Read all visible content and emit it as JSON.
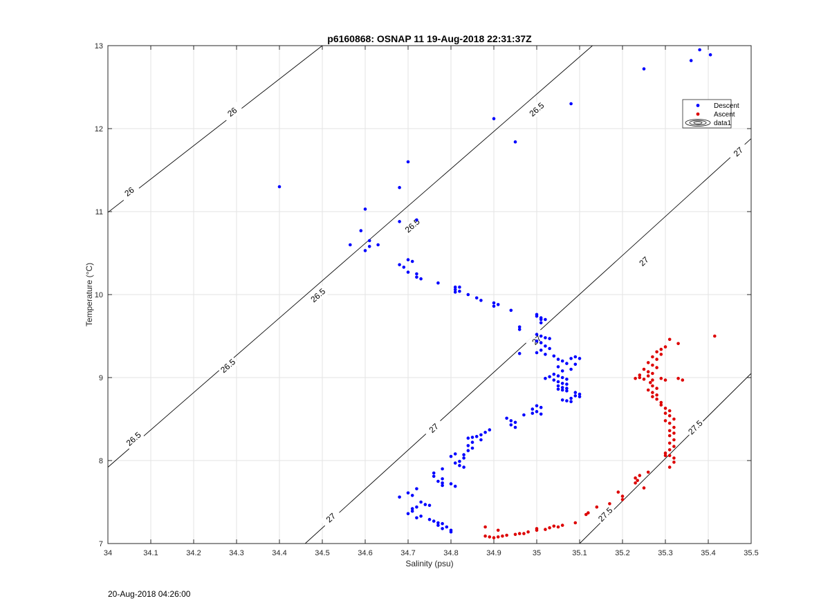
{
  "chart_data": {
    "type": "scatter",
    "title": "p6160868: OSNAP 11 19-Aug-2018 22:31:37Z",
    "xlabel": "Salinity (psu)",
    "ylabel": "Temperature (°C)",
    "xlim": [
      34,
      35.5
    ],
    "ylim": [
      7,
      13
    ],
    "xticks": [
      34,
      34.1,
      34.2,
      34.3,
      34.4,
      34.5,
      34.6,
      34.7,
      34.8,
      34.9,
      35,
      35.1,
      35.2,
      35.3,
      35.4,
      35.5
    ],
    "xtick_labels": [
      "34",
      "34.1",
      "34.2",
      "34.3",
      "34.4",
      "34.5",
      "34.6",
      "34.7",
      "34.8",
      "34.9",
      "35",
      "35.1",
      "35.2",
      "35.3",
      "35.4",
      "35.5"
    ],
    "yticks": [
      7,
      8,
      9,
      10,
      11,
      12,
      13
    ],
    "ytick_labels": [
      "7",
      "8",
      "9",
      "10",
      "11",
      "12",
      "13"
    ],
    "grid": true,
    "legend_position": "top-right",
    "legend": [
      "Descent",
      "Ascent",
      "data1"
    ],
    "contours": [
      {
        "level": "26",
        "line": [
          [
            34,
            10.99
          ],
          [
            34.5,
            13.0
          ]
        ],
        "labels": [
          [
            34.05,
            11.24
          ],
          [
            34.29,
            12.2
          ]
        ]
      },
      {
        "level": "26.5",
        "line": [
          [
            34,
            7.92
          ],
          [
            35.13,
            13.0
          ]
        ],
        "labels": [
          [
            34.06,
            8.26
          ],
          [
            34.28,
            9.14
          ],
          [
            34.49,
            9.99
          ],
          [
            34.71,
            10.83
          ],
          [
            35.0,
            12.23
          ]
        ]
      },
      {
        "level": "27",
        "line": [
          [
            34.46,
            7.0
          ],
          [
            35.5,
            11.88
          ]
        ],
        "labels": [
          [
            34.52,
            7.31
          ],
          [
            34.76,
            8.39
          ],
          [
            35.0,
            9.45
          ],
          [
            35.25,
            10.4
          ],
          [
            35.47,
            11.72
          ]
        ]
      },
      {
        "level": "27.5",
        "line": [
          [
            35.1,
            7.0
          ],
          [
            35.5,
            9.05
          ]
        ],
        "labels": [
          [
            35.16,
            7.35
          ],
          [
            35.37,
            8.4
          ]
        ]
      }
    ],
    "series": [
      {
        "name": "Descent",
        "color": "#0000ff",
        "points": [
          [
            35.38,
            12.95
          ],
          [
            35.405,
            12.89
          ],
          [
            35.36,
            12.82
          ],
          [
            35.25,
            12.72
          ],
          [
            35.08,
            12.3
          ],
          [
            34.9,
            12.12
          ],
          [
            34.95,
            11.84
          ],
          [
            34.7,
            11.6
          ],
          [
            34.4,
            11.3
          ],
          [
            34.68,
            11.29
          ],
          [
            34.6,
            11.03
          ],
          [
            34.72,
            10.9
          ],
          [
            34.68,
            10.88
          ],
          [
            34.59,
            10.77
          ],
          [
            34.61,
            10.65
          ],
          [
            34.63,
            10.6
          ],
          [
            34.565,
            10.6
          ],
          [
            34.6,
            10.53
          ],
          [
            34.61,
            10.58
          ],
          [
            34.7,
            10.42
          ],
          [
            34.71,
            10.4
          ],
          [
            34.68,
            10.36
          ],
          [
            34.69,
            10.33
          ],
          [
            34.7,
            10.27
          ],
          [
            34.72,
            10.25
          ],
          [
            34.72,
            10.21
          ],
          [
            34.73,
            10.19
          ],
          [
            34.77,
            10.14
          ],
          [
            34.81,
            10.09
          ],
          [
            34.82,
            10.09
          ],
          [
            34.81,
            10.06
          ],
          [
            34.82,
            10.04
          ],
          [
            34.81,
            10.03
          ],
          [
            34.84,
            10.0
          ],
          [
            34.86,
            9.96
          ],
          [
            34.87,
            9.93
          ],
          [
            34.9,
            9.9
          ],
          [
            34.91,
            9.88
          ],
          [
            34.9,
            9.86
          ],
          [
            34.94,
            9.81
          ],
          [
            35.0,
            9.76
          ],
          [
            35.0,
            9.74
          ],
          [
            35.01,
            9.72
          ],
          [
            35.01,
            9.7
          ],
          [
            35.02,
            9.7
          ],
          [
            35.01,
            9.66
          ],
          [
            34.96,
            9.61
          ],
          [
            34.96,
            9.58
          ],
          [
            35.0,
            9.52
          ],
          [
            35.01,
            9.5
          ],
          [
            35.02,
            9.48
          ],
          [
            35.03,
            9.47
          ],
          [
            35.0,
            9.44
          ],
          [
            35.01,
            9.42
          ],
          [
            35.02,
            9.38
          ],
          [
            35.03,
            9.35
          ],
          [
            35.01,
            9.33
          ],
          [
            35.0,
            9.3
          ],
          [
            35.02,
            9.28
          ],
          [
            35.04,
            9.26
          ],
          [
            34.96,
            9.29
          ],
          [
            35.05,
            9.22
          ],
          [
            35.06,
            9.2
          ],
          [
            35.08,
            9.23
          ],
          [
            35.09,
            9.25
          ],
          [
            35.1,
            9.23
          ],
          [
            35.07,
            9.17
          ],
          [
            35.09,
            9.16
          ],
          [
            35.05,
            9.13
          ],
          [
            35.06,
            9.08
          ],
          [
            35.08,
            9.1
          ],
          [
            35.04,
            9.04
          ],
          [
            35.05,
            9.02
          ],
          [
            35.06,
            9.0
          ],
          [
            35.07,
            8.98
          ],
          [
            35.03,
            9.01
          ],
          [
            35.02,
            8.99
          ],
          [
            35.04,
            8.97
          ],
          [
            35.05,
            8.95
          ],
          [
            35.06,
            8.93
          ],
          [
            35.07,
            8.92
          ],
          [
            35.05,
            8.9
          ],
          [
            35.06,
            8.88
          ],
          [
            35.07,
            8.87
          ],
          [
            35.05,
            8.86
          ],
          [
            35.06,
            8.85
          ],
          [
            35.07,
            8.84
          ],
          [
            35.09,
            8.82
          ],
          [
            35.1,
            8.8
          ],
          [
            35.09,
            8.78
          ],
          [
            35.1,
            8.77
          ],
          [
            35.08,
            8.75
          ],
          [
            35.07,
            8.72
          ],
          [
            35.08,
            8.71
          ],
          [
            35.06,
            8.73
          ],
          [
            35.0,
            8.66
          ],
          [
            35.01,
            8.64
          ],
          [
            34.99,
            8.62
          ],
          [
            35.0,
            8.59
          ],
          [
            34.99,
            8.57
          ],
          [
            35.01,
            8.56
          ],
          [
            34.97,
            8.55
          ],
          [
            34.93,
            8.51
          ],
          [
            34.94,
            8.48
          ],
          [
            34.95,
            8.46
          ],
          [
            34.94,
            8.43
          ],
          [
            34.95,
            8.4
          ],
          [
            34.89,
            8.37
          ],
          [
            34.88,
            8.34
          ],
          [
            34.87,
            8.31
          ],
          [
            34.86,
            8.29
          ],
          [
            34.85,
            8.28
          ],
          [
            34.84,
            8.27
          ],
          [
            34.87,
            8.25
          ],
          [
            34.85,
            8.22
          ],
          [
            34.84,
            8.18
          ],
          [
            34.85,
            8.15
          ],
          [
            34.84,
            8.12
          ],
          [
            34.83,
            8.07
          ],
          [
            34.83,
            8.03
          ],
          [
            34.81,
            8.08
          ],
          [
            34.8,
            8.05
          ],
          [
            34.82,
            7.99
          ],
          [
            34.81,
            7.97
          ],
          [
            34.82,
            7.94
          ],
          [
            34.83,
            7.92
          ],
          [
            34.78,
            7.9
          ],
          [
            34.76,
            7.85
          ],
          [
            34.76,
            7.81
          ],
          [
            34.78,
            7.78
          ],
          [
            34.77,
            7.75
          ],
          [
            34.78,
            7.73
          ],
          [
            34.78,
            7.7
          ],
          [
            34.8,
            7.72
          ],
          [
            34.81,
            7.69
          ],
          [
            34.72,
            7.66
          ],
          [
            34.7,
            7.61
          ],
          [
            34.71,
            7.58
          ],
          [
            34.68,
            7.56
          ],
          [
            34.73,
            7.5
          ],
          [
            34.74,
            7.47
          ],
          [
            34.75,
            7.46
          ],
          [
            34.72,
            7.44
          ],
          [
            34.71,
            7.42
          ],
          [
            34.71,
            7.39
          ],
          [
            34.7,
            7.36
          ],
          [
            34.73,
            7.33
          ],
          [
            34.72,
            7.31
          ],
          [
            34.75,
            7.29
          ],
          [
            34.76,
            7.27
          ],
          [
            34.77,
            7.25
          ],
          [
            34.78,
            7.24
          ],
          [
            34.77,
            7.22
          ],
          [
            34.79,
            7.2
          ],
          [
            34.78,
            7.18
          ],
          [
            34.8,
            7.16
          ],
          [
            34.8,
            7.14
          ]
        ]
      },
      {
        "name": "Ascent",
        "color": "#dd0000",
        "points": [
          [
            35.415,
            9.5
          ],
          [
            35.31,
            9.46
          ],
          [
            35.33,
            9.41
          ],
          [
            35.3,
            9.37
          ],
          [
            35.29,
            9.34
          ],
          [
            35.28,
            9.31
          ],
          [
            35.29,
            9.28
          ],
          [
            35.27,
            9.25
          ],
          [
            35.28,
            9.22
          ],
          [
            35.26,
            9.18
          ],
          [
            35.27,
            9.15
          ],
          [
            35.28,
            9.12
          ],
          [
            35.25,
            9.1
          ],
          [
            35.26,
            9.07
          ],
          [
            35.27,
            9.05
          ],
          [
            35.24,
            9.03
          ],
          [
            35.26,
            9.02
          ],
          [
            35.24,
            9.0
          ],
          [
            35.23,
            8.99
          ],
          [
            35.25,
            8.98
          ],
          [
            35.27,
            8.97
          ],
          [
            35.29,
            8.99
          ],
          [
            35.3,
            8.97
          ],
          [
            35.33,
            8.99
          ],
          [
            35.34,
            8.97
          ],
          [
            35.265,
            8.94
          ],
          [
            35.27,
            8.9
          ],
          [
            35.28,
            8.87
          ],
          [
            35.26,
            8.85
          ],
          [
            35.27,
            8.82
          ],
          [
            35.28,
            8.79
          ],
          [
            35.27,
            8.77
          ],
          [
            35.28,
            8.74
          ],
          [
            35.29,
            8.7
          ],
          [
            35.29,
            8.67
          ],
          [
            35.3,
            8.63
          ],
          [
            35.31,
            8.6
          ],
          [
            35.3,
            8.57
          ],
          [
            35.31,
            8.54
          ],
          [
            35.32,
            8.5
          ],
          [
            35.3,
            8.48
          ],
          [
            35.31,
            8.45
          ],
          [
            35.32,
            8.4
          ],
          [
            35.31,
            8.36
          ],
          [
            35.32,
            8.33
          ],
          [
            35.31,
            8.3
          ],
          [
            35.32,
            8.25
          ],
          [
            35.31,
            8.21
          ],
          [
            35.32,
            8.17
          ],
          [
            35.31,
            8.13
          ],
          [
            35.3,
            8.09
          ],
          [
            35.31,
            8.06
          ],
          [
            35.32,
            8.03
          ],
          [
            35.3,
            8.06
          ],
          [
            35.32,
            7.98
          ],
          [
            35.31,
            7.92
          ],
          [
            35.26,
            7.86
          ],
          [
            35.24,
            7.82
          ],
          [
            35.23,
            7.79
          ],
          [
            35.235,
            7.76
          ],
          [
            35.23,
            7.73
          ],
          [
            35.25,
            7.67
          ],
          [
            35.19,
            7.62
          ],
          [
            35.2,
            7.57
          ],
          [
            35.2,
            7.53
          ],
          [
            35.17,
            7.48
          ],
          [
            35.14,
            7.44
          ],
          [
            35.12,
            7.37
          ],
          [
            35.115,
            7.35
          ],
          [
            35.09,
            7.25
          ],
          [
            35.06,
            7.22
          ],
          [
            35.05,
            7.2
          ],
          [
            35.04,
            7.21
          ],
          [
            35.03,
            7.19
          ],
          [
            35.02,
            7.17
          ],
          [
            35.0,
            7.18
          ],
          [
            35.0,
            7.16
          ],
          [
            34.98,
            7.14
          ],
          [
            34.97,
            7.12
          ],
          [
            34.96,
            7.12
          ],
          [
            34.95,
            7.11
          ],
          [
            34.93,
            7.1
          ],
          [
            34.92,
            7.09
          ],
          [
            34.91,
            7.08
          ],
          [
            34.9,
            7.07
          ],
          [
            34.89,
            7.08
          ],
          [
            34.88,
            7.09
          ],
          [
            34.91,
            7.16
          ],
          [
            34.88,
            7.2
          ]
        ]
      }
    ]
  },
  "footer": {
    "timestamp": "20-Aug-2018 04:26:00"
  }
}
